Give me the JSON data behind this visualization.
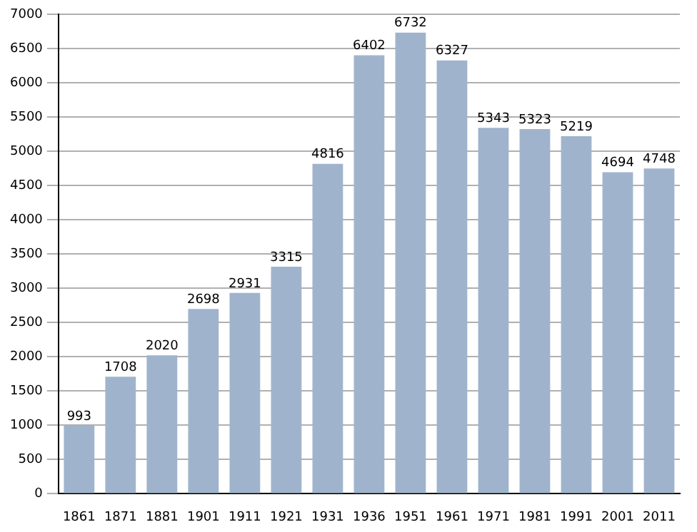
{
  "chart_data": {
    "type": "bar",
    "categories": [
      "1861",
      "1871",
      "1881",
      "1901",
      "1911",
      "1921",
      "1931",
      "1936",
      "1951",
      "1961",
      "1971",
      "1981",
      "1991",
      "2001",
      "2011"
    ],
    "values": [
      993,
      1708,
      2020,
      2698,
      2931,
      3315,
      4816,
      6402,
      6732,
      6327,
      5343,
      5323,
      5219,
      4694,
      4748
    ],
    "color": "#9fb4cc",
    "ylim": [
      0,
      7000
    ],
    "yticks": [
      0,
      500,
      1000,
      1500,
      2000,
      2500,
      3000,
      3500,
      4000,
      4500,
      5000,
      5500,
      6000,
      6500,
      7000
    ],
    "grid": "y",
    "data_labels": true
  }
}
